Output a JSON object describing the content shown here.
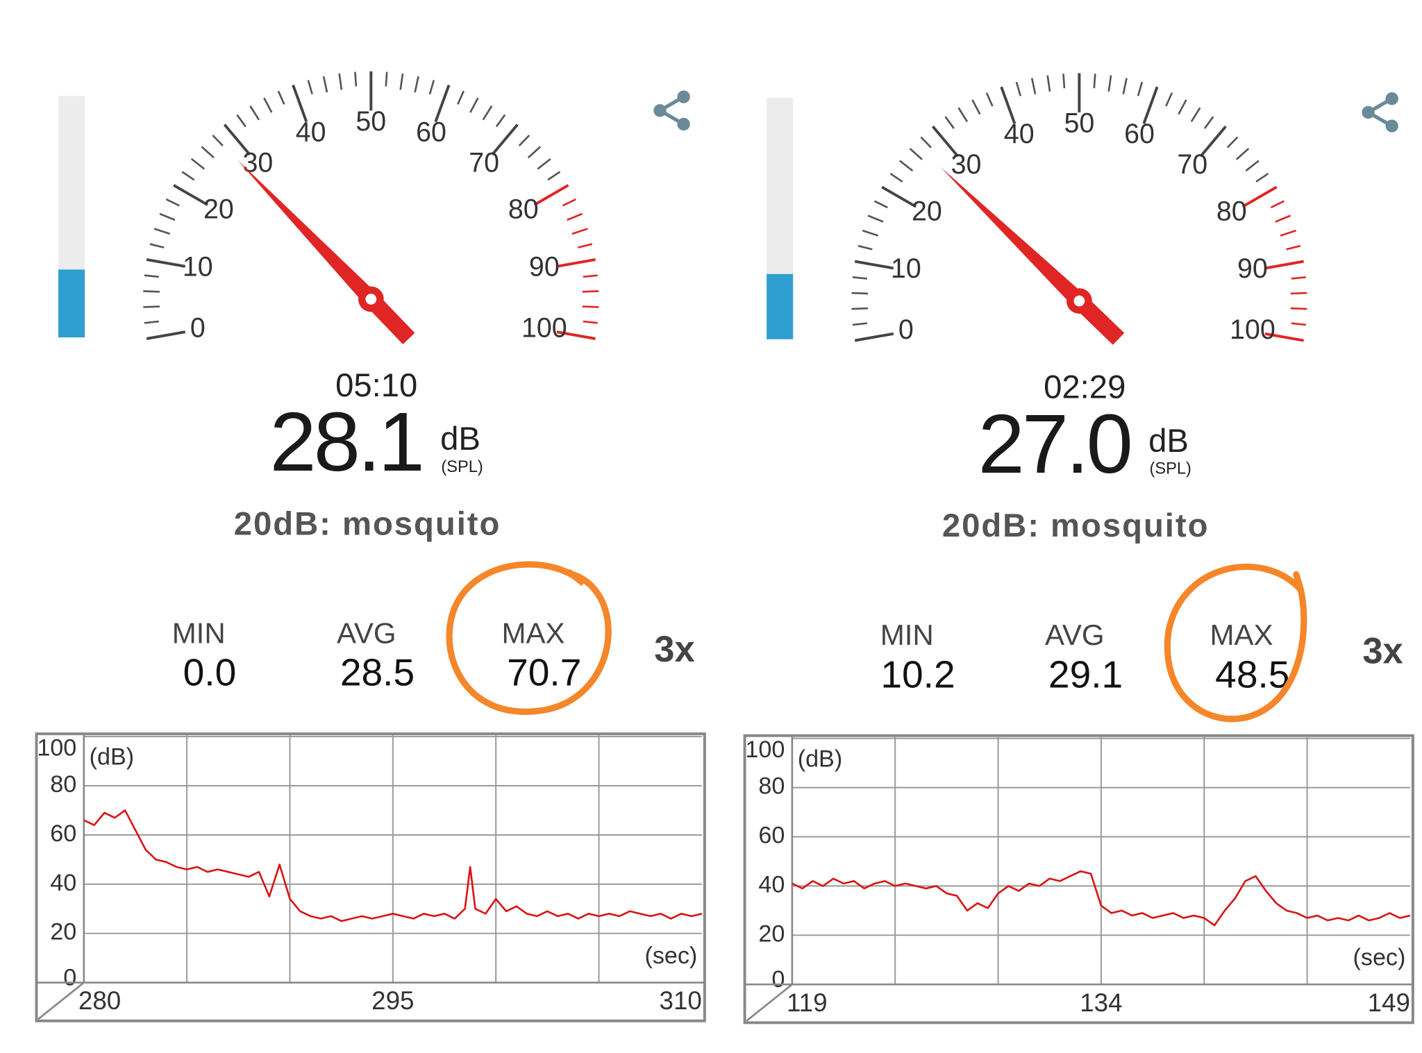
{
  "panels": [
    {
      "gauge": {
        "range": [
          0,
          100
        ],
        "ticks": [
          0,
          10,
          20,
          30,
          40,
          50,
          60,
          70,
          80,
          90,
          100
        ],
        "warn_from": 80
      },
      "time": "05:10",
      "level": "28.1",
      "unit": "dB",
      "unit_note": "(SPL)",
      "reference": "20dB: mosquito",
      "stats": [
        {
          "label": "MIN",
          "value": "0.0"
        },
        {
          "label": "AVG",
          "value": "28.5"
        },
        {
          "label": "MAX",
          "value": "70.7"
        }
      ],
      "speed": "3x",
      "chart_data": {
        "type": "line",
        "y_label": "(dB)",
        "x_label": "(sec)",
        "color": "#d81515",
        "xlim": [
          280,
          310
        ],
        "xticks": [
          280,
          295,
          310
        ],
        "ylim": [
          0,
          100
        ],
        "yticks": [
          0,
          20,
          40,
          60,
          80,
          100
        ],
        "grid": true,
        "x": [
          280,
          280.5,
          281,
          281.5,
          282,
          282.5,
          283,
          283.5,
          284,
          284.5,
          285,
          285.5,
          286,
          286.5,
          287,
          287.5,
          288,
          288.5,
          289,
          289.5,
          290,
          290.5,
          291,
          291.5,
          292,
          292.5,
          293,
          293.5,
          294,
          294.5,
          295,
          295.5,
          296,
          296.5,
          297,
          297.5,
          298,
          298.5,
          298.75,
          299,
          299.5,
          300,
          300.5,
          301,
          301.5,
          302,
          302.5,
          303,
          303.5,
          304,
          304.5,
          305,
          305.5,
          306,
          306.5,
          307,
          307.5,
          308,
          308.5,
          309,
          309.5,
          310
        ],
        "values": [
          66,
          64,
          69,
          67,
          70,
          62,
          54,
          50,
          49,
          47,
          46,
          47,
          45,
          46,
          45,
          44,
          43,
          45,
          35,
          48,
          34,
          29,
          27,
          26,
          27,
          25,
          26,
          27,
          26,
          27,
          28,
          27,
          26,
          28,
          27,
          28,
          26,
          30,
          47,
          30,
          28,
          34,
          29,
          31,
          28,
          27,
          29,
          27,
          28,
          26,
          28,
          27,
          28,
          27,
          29,
          28,
          27,
          28,
          26,
          28,
          27,
          28
        ]
      }
    },
    {
      "gauge": {
        "range": [
          0,
          100
        ],
        "ticks": [
          0,
          10,
          20,
          30,
          40,
          50,
          60,
          70,
          80,
          90,
          100
        ],
        "warn_from": 80
      },
      "time": "02:29",
      "level": "27.0",
      "unit": "dB",
      "unit_note": "(SPL)",
      "reference": "20dB: mosquito",
      "stats": [
        {
          "label": "MIN",
          "value": "10.2"
        },
        {
          "label": "AVG",
          "value": "29.1"
        },
        {
          "label": "MAX",
          "value": "48.5"
        }
      ],
      "speed": "3x",
      "chart_data": {
        "type": "line",
        "y_label": "(dB)",
        "x_label": "(sec)",
        "color": "#d81515",
        "xlim": [
          119,
          149
        ],
        "xticks": [
          119,
          134,
          149
        ],
        "ylim": [
          0,
          100
        ],
        "yticks": [
          0,
          20,
          40,
          60,
          80,
          100
        ],
        "grid": true,
        "x": [
          119,
          119.5,
          120,
          120.5,
          121,
          121.5,
          122,
          122.5,
          123,
          123.5,
          124,
          124.5,
          125,
          125.5,
          126,
          126.5,
          127,
          127.5,
          128,
          128.5,
          129,
          129.5,
          130,
          130.5,
          131,
          131.5,
          132,
          132.5,
          133,
          133.5,
          134,
          134.5,
          135,
          135.5,
          136,
          136.5,
          137,
          137.5,
          138,
          138.5,
          139,
          139.5,
          140,
          140.5,
          141,
          141.5,
          142,
          142.5,
          143,
          143.5,
          144,
          144.5,
          145,
          145.5,
          146,
          146.5,
          147,
          147.5,
          148,
          148.5,
          149
        ],
        "values": [
          41,
          39,
          42,
          40,
          43,
          41,
          42,
          39,
          41,
          42,
          40,
          41,
          40,
          39,
          40,
          37,
          36,
          30,
          33,
          31,
          37,
          40,
          38,
          41,
          40,
          43,
          42,
          44,
          46,
          45,
          32,
          29,
          30,
          28,
          29,
          27,
          28,
          29,
          27,
          28,
          27,
          24,
          30,
          35,
          42,
          44,
          38,
          33,
          30,
          29,
          27,
          28,
          26,
          27,
          26,
          28,
          26,
          27,
          29,
          27,
          28
        ]
      }
    }
  ]
}
